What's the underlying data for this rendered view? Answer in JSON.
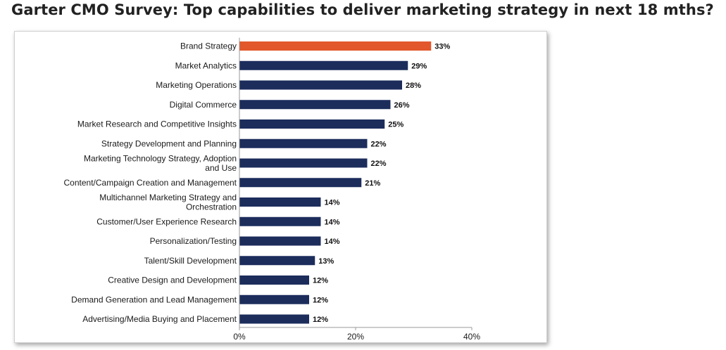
{
  "title": "Garter CMO Survey: Top capabilities to deliver marketing strategy in next 18 mths?",
  "colors": {
    "highlight": "#E2572B",
    "bar": "#1C2D5C",
    "axis": "#9a9a9a"
  },
  "chart_data": {
    "type": "bar",
    "orientation": "horizontal",
    "categories": [
      [
        "Brand Strategy"
      ],
      [
        "Market Analytics"
      ],
      [
        "Marketing Operations"
      ],
      [
        "Digital Commerce"
      ],
      [
        "Market Research and Competitive Insights"
      ],
      [
        "Strategy Development and Planning"
      ],
      [
        "Marketing Technology Strategy, Adoption",
        "and Use"
      ],
      [
        "Content/Campaign Creation and Management"
      ],
      [
        "Multichannel Marketing Strategy and",
        "Orchestration"
      ],
      [
        "Customer/User Experience Research"
      ],
      [
        "Personalization/Testing"
      ],
      [
        "Talent/Skill Development"
      ],
      [
        "Creative Design and Development"
      ],
      [
        "Demand Generation and Lead Management"
      ],
      [
        "Advertising/Media Buying and Placement"
      ]
    ],
    "values": [
      33,
      29,
      28,
      26,
      25,
      22,
      22,
      21,
      14,
      14,
      14,
      13,
      12,
      12,
      12
    ],
    "value_labels": [
      "33%",
      "29%",
      "28%",
      "26%",
      "25%",
      "22%",
      "22%",
      "21%",
      "14%",
      "14%",
      "14%",
      "13%",
      "12%",
      "12%",
      "12%"
    ],
    "highlighted_index": 0,
    "xlim": [
      0,
      40
    ],
    "xticks": [
      0,
      20,
      40
    ],
    "xtick_labels": [
      "0%",
      "20%",
      "40%"
    ],
    "xlabel": "",
    "ylabel": "",
    "grid": false,
    "legend": "none"
  }
}
